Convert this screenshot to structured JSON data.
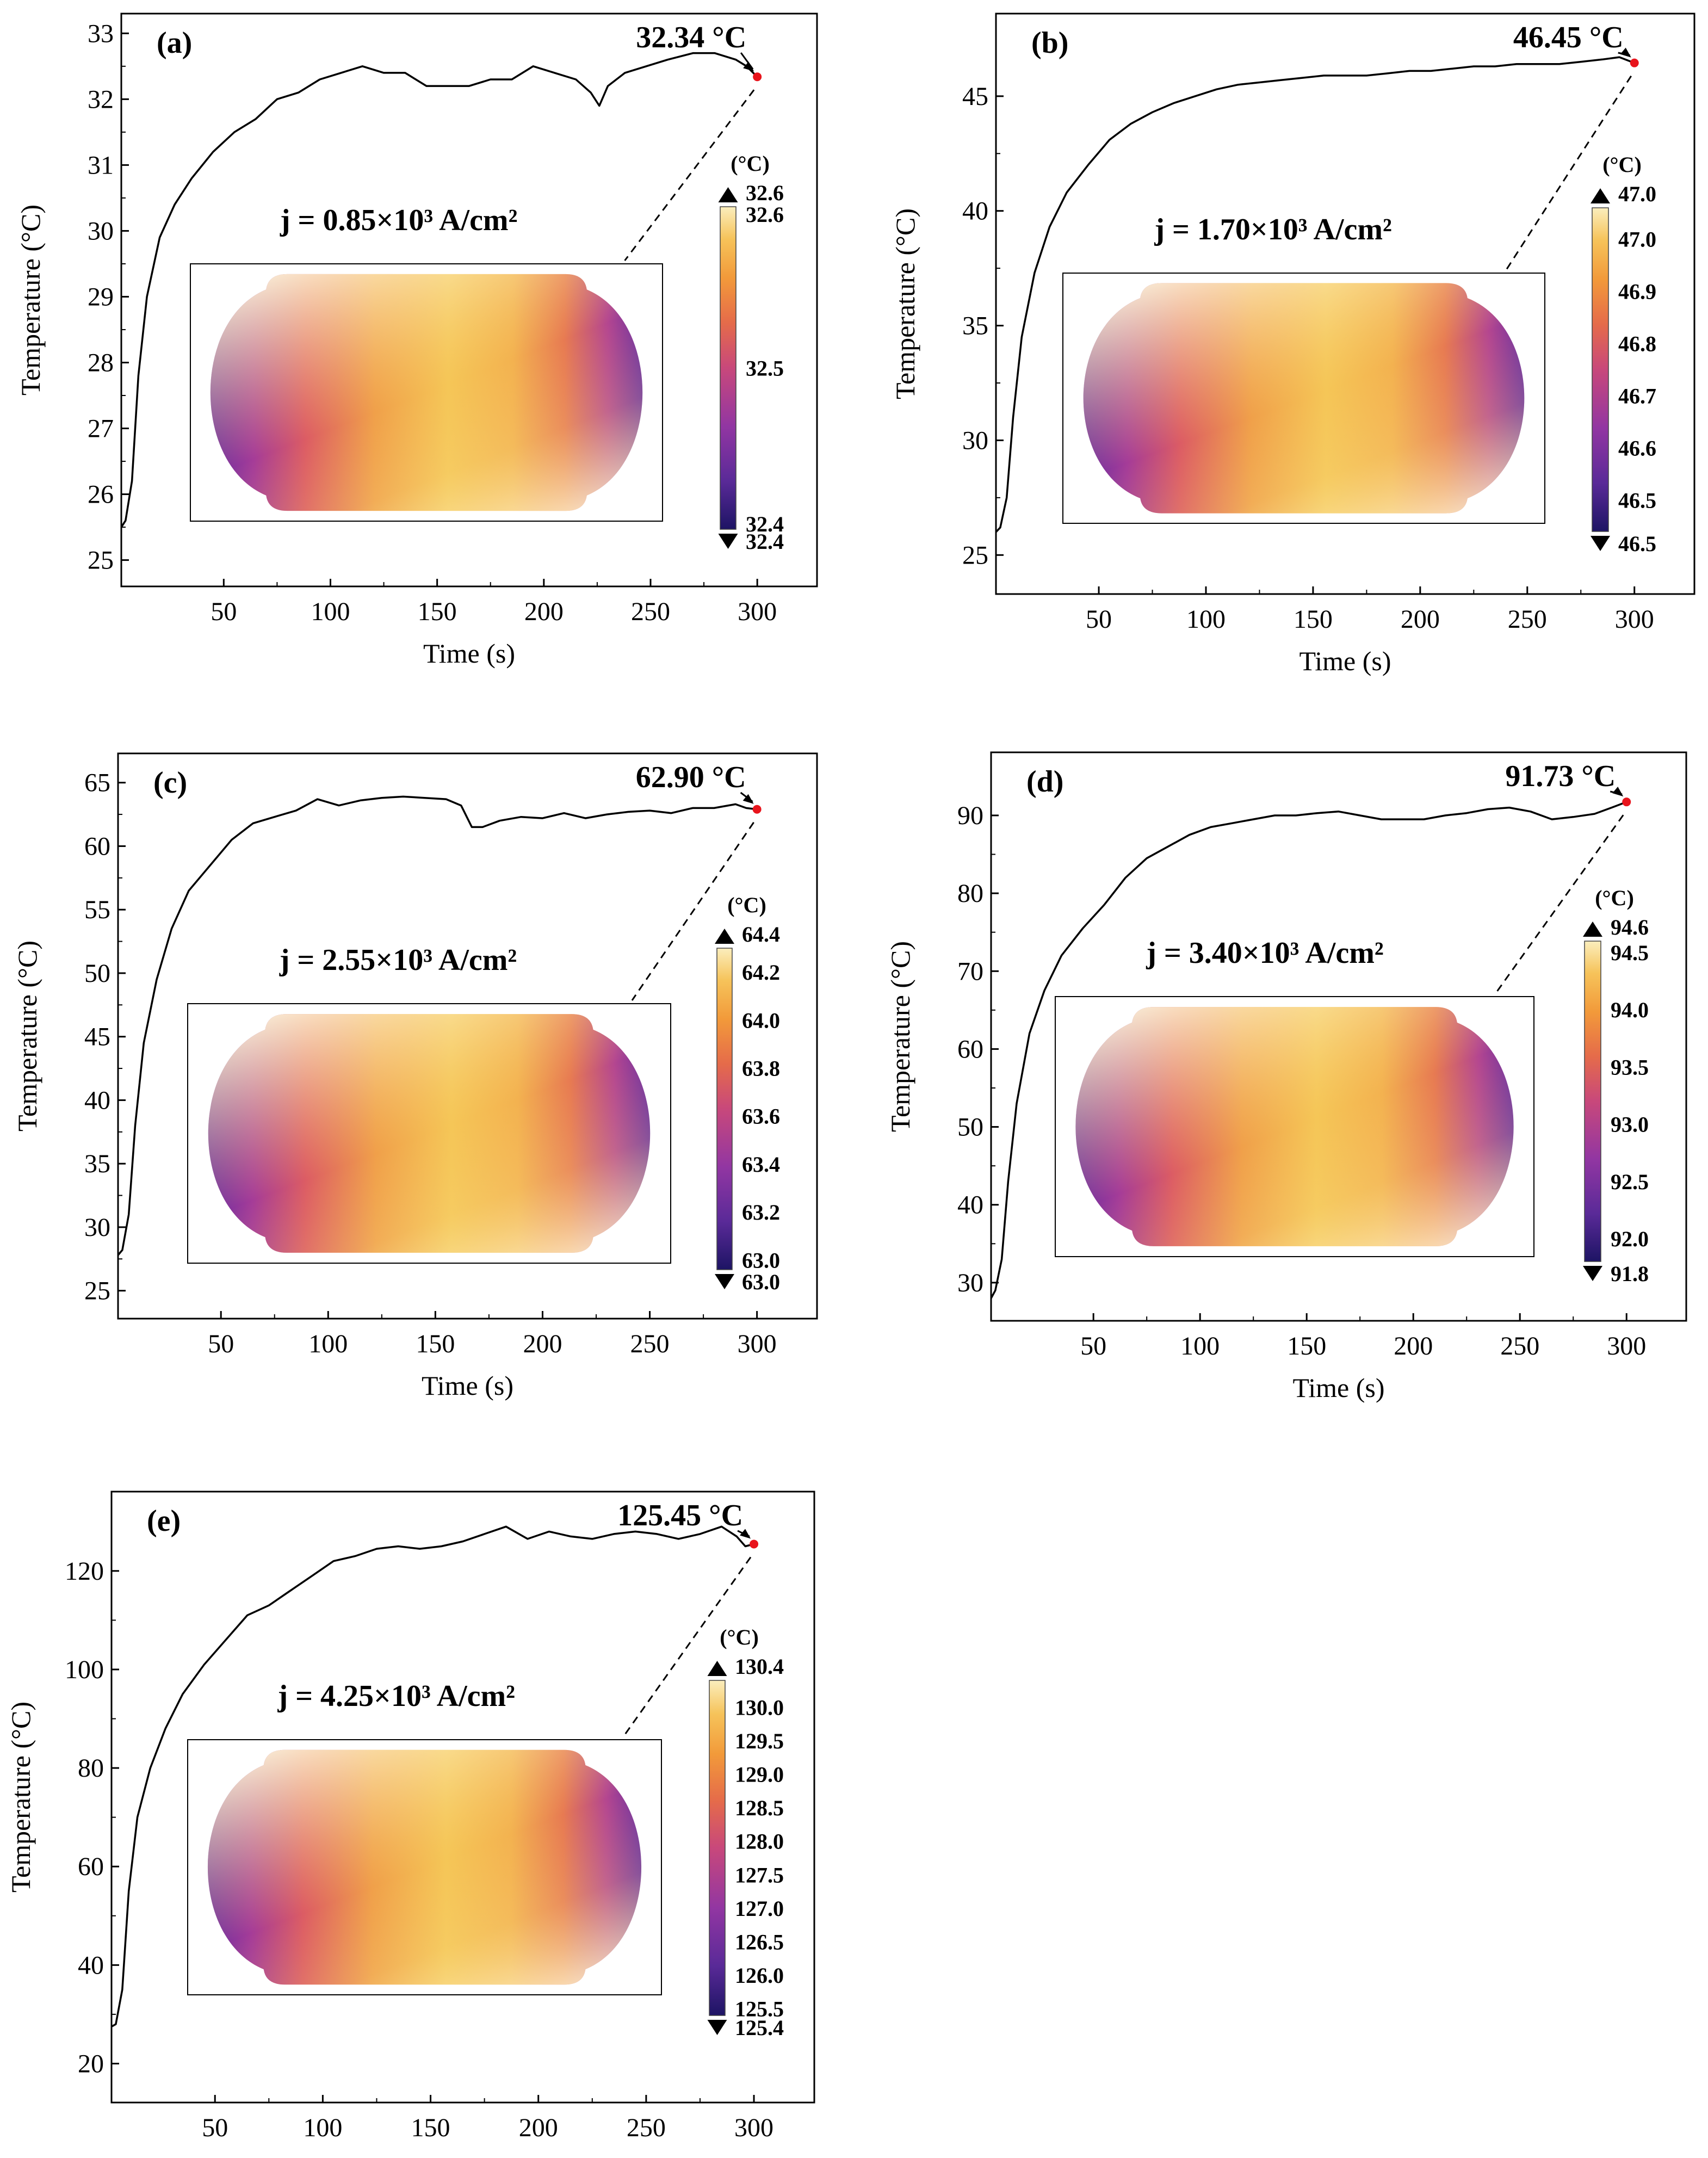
{
  "chart_data": [
    {
      "type": "line",
      "panel_label": "(a)",
      "xlabel": "Time (s)",
      "ylabel": "Temperature (°C)",
      "xlim": [
        2,
        328
      ],
      "ylim": [
        24.6,
        33.3
      ],
      "xticks": [
        50,
        100,
        150,
        200,
        250,
        300
      ],
      "yticks": [
        25,
        26,
        27,
        28,
        29,
        30,
        31,
        32,
        33
      ],
      "x": [
        2,
        4,
        7,
        10,
        14,
        20,
        27,
        35,
        45,
        55,
        65,
        75,
        85,
        95,
        105,
        115,
        125,
        135,
        145,
        155,
        165,
        175,
        185,
        195,
        205,
        215,
        222,
        226,
        230,
        238,
        248,
        258,
        270,
        280,
        290,
        295,
        300
      ],
      "y": [
        25.5,
        25.6,
        26.2,
        27.8,
        29.0,
        29.9,
        30.4,
        30.8,
        31.2,
        31.5,
        31.7,
        32.0,
        32.1,
        32.3,
        32.4,
        32.5,
        32.4,
        32.4,
        32.2,
        32.2,
        32.2,
        32.3,
        32.3,
        32.5,
        32.4,
        32.3,
        32.1,
        31.9,
        32.2,
        32.4,
        32.5,
        32.6,
        32.7,
        32.7,
        32.6,
        32.5,
        32.34
      ],
      "endpoint_label": "32.34 °C",
      "endpoint": [
        300,
        32.34
      ],
      "current_density": "j =  0.85×10³ A/cm²",
      "colorbar": {
        "unit": "(°C)",
        "max_label": "32.6",
        "min_label": "32.4",
        "tick_labels": [
          "32.6",
          "32.5",
          "32.4"
        ],
        "tick_values": [
          32.6,
          32.5,
          32.4
        ],
        "range": [
          32.4,
          32.6
        ]
      }
    },
    {
      "type": "line",
      "panel_label": "(b)",
      "xlabel": "Time (s)",
      "ylabel": "Temperature (°C)",
      "xlim": [
        2,
        328
      ],
      "ylim": [
        23.3,
        48.6
      ],
      "xticks": [
        50,
        100,
        150,
        200,
        250,
        300
      ],
      "yticks": [
        25,
        30,
        35,
        40,
        45
      ],
      "x": [
        2,
        4,
        7,
        10,
        14,
        20,
        27,
        35,
        45,
        55,
        65,
        75,
        85,
        95,
        105,
        115,
        125,
        135,
        145,
        155,
        165,
        175,
        185,
        195,
        205,
        215,
        225,
        235,
        245,
        255,
        265,
        275,
        285,
        293,
        300
      ],
      "y": [
        26.0,
        26.2,
        27.5,
        31.0,
        34.5,
        37.3,
        39.3,
        40.8,
        42.0,
        43.1,
        43.8,
        44.3,
        44.7,
        45.0,
        45.3,
        45.5,
        45.6,
        45.7,
        45.8,
        45.9,
        45.9,
        45.9,
        46.0,
        46.1,
        46.1,
        46.2,
        46.3,
        46.3,
        46.4,
        46.4,
        46.4,
        46.5,
        46.6,
        46.7,
        46.45
      ],
      "endpoint_label": "46.45 °C",
      "endpoint": [
        300,
        46.45
      ],
      "current_density": "j =  1.70×10³ A/cm²",
      "colorbar": {
        "unit": "(°C)",
        "max_label": "47.0",
        "min_label": "46.5",
        "tick_labels": [
          "47.0",
          "46.9",
          "46.8",
          "46.7",
          "46.6",
          "46.5"
        ],
        "tick_values": [
          47.0,
          46.9,
          46.8,
          46.7,
          46.6,
          46.5
        ],
        "range": [
          46.44,
          47.06
        ]
      }
    },
    {
      "type": "line",
      "panel_label": "(c)",
      "xlabel": "Time (s)",
      "ylabel": "Temperature (°C)",
      "xlim": [
        2,
        328
      ],
      "ylim": [
        22.8,
        67.3
      ],
      "xticks": [
        50,
        100,
        150,
        200,
        250,
        300
      ],
      "yticks": [
        25,
        30,
        35,
        40,
        45,
        50,
        55,
        60,
        65
      ],
      "x": [
        2,
        4,
        7,
        10,
        14,
        20,
        27,
        35,
        45,
        55,
        65,
        75,
        85,
        95,
        105,
        115,
        125,
        135,
        145,
        155,
        162,
        167,
        172,
        180,
        190,
        200,
        210,
        220,
        230,
        240,
        250,
        260,
        270,
        280,
        290,
        295,
        300
      ],
      "y": [
        27.8,
        28.2,
        31.0,
        38.0,
        44.5,
        49.5,
        53.5,
        56.5,
        58.5,
        60.5,
        61.8,
        62.3,
        62.8,
        63.7,
        63.2,
        63.6,
        63.8,
        63.9,
        63.8,
        63.7,
        63.2,
        61.5,
        61.5,
        62.0,
        62.3,
        62.2,
        62.6,
        62.2,
        62.5,
        62.7,
        62.8,
        62.6,
        63.0,
        63.0,
        63.3,
        63.0,
        62.9
      ],
      "endpoint_label": "62.90 °C",
      "endpoint": [
        300,
        62.9
      ],
      "current_density": "j =  2.55×10³ A/cm²",
      "colorbar": {
        "unit": "(°C)",
        "max_label": "64.4",
        "min_label": "63.0",
        "tick_labels": [
          "64.2",
          "64.0",
          "63.8",
          "63.6",
          "63.4",
          "63.2",
          "63.0"
        ],
        "tick_values": [
          64.2,
          64.0,
          63.8,
          63.6,
          63.4,
          63.2,
          63.0
        ],
        "range": [
          62.96,
          64.3
        ]
      }
    },
    {
      "type": "line",
      "panel_label": "(d)",
      "xlabel": "Time (s)",
      "ylabel": "Temperature (°C)",
      "xlim": [
        2,
        328
      ],
      "ylim": [
        25.1,
        98.1
      ],
      "xticks": [
        50,
        100,
        150,
        200,
        250,
        300
      ],
      "yticks": [
        30,
        40,
        50,
        60,
        70,
        80,
        90
      ],
      "x": [
        2,
        4,
        7,
        10,
        14,
        20,
        27,
        35,
        45,
        55,
        65,
        75,
        85,
        95,
        105,
        115,
        125,
        135,
        145,
        155,
        165,
        175,
        185,
        195,
        205,
        215,
        225,
        235,
        245,
        255,
        265,
        275,
        285,
        293,
        300
      ],
      "y": [
        28.0,
        29.0,
        33.0,
        43.0,
        53.0,
        62.0,
        67.5,
        72.0,
        75.5,
        78.5,
        82.0,
        84.5,
        86.0,
        87.5,
        88.5,
        89.0,
        89.5,
        90.0,
        90.0,
        90.3,
        90.5,
        90.0,
        89.5,
        89.5,
        89.5,
        90.0,
        90.3,
        90.8,
        91.0,
        90.5,
        89.5,
        89.8,
        90.2,
        91.0,
        91.73
      ],
      "endpoint_label": "91.73 °C",
      "endpoint": [
        300,
        91.73
      ],
      "current_density": "j =  3.40×10³ A/cm²",
      "colorbar": {
        "unit": "(°C)",
        "max_label": "94.6",
        "min_label": "91.8",
        "tick_labels": [
          "94.5",
          "94.0",
          "93.5",
          "93.0",
          "92.5",
          "92.0"
        ],
        "tick_values": [
          94.5,
          94.0,
          93.5,
          93.0,
          92.5,
          92.0
        ],
        "range": [
          91.8,
          94.6
        ]
      }
    },
    {
      "type": "line",
      "panel_label": "(e)",
      "xlabel": "Time (s)",
      "ylabel": "Temperature (°C)",
      "xlim": [
        2,
        328
      ],
      "ylim": [
        12.1,
        136.1
      ],
      "xticks": [
        50,
        100,
        150,
        200,
        250,
        300
      ],
      "yticks": [
        20,
        40,
        60,
        80,
        100,
        120
      ],
      "x": [
        2,
        4,
        7,
        10,
        14,
        20,
        27,
        35,
        45,
        55,
        65,
        75,
        85,
        95,
        105,
        115,
        125,
        135,
        145,
        155,
        165,
        175,
        185,
        195,
        205,
        215,
        225,
        235,
        245,
        255,
        265,
        275,
        285,
        292,
        296,
        300
      ],
      "y": [
        27.5,
        28.0,
        35.0,
        55.0,
        70.0,
        80.0,
        88.0,
        95.0,
        101.0,
        106.0,
        111.0,
        113.0,
        116.0,
        119.0,
        122.0,
        123.0,
        124.5,
        125.0,
        124.5,
        125.0,
        126.0,
        127.5,
        129.0,
        126.5,
        128.0,
        127.0,
        126.5,
        127.5,
        128.0,
        127.5,
        126.5,
        127.5,
        129.0,
        127.0,
        125.0,
        125.45
      ],
      "endpoint_label": "125.45 °C",
      "endpoint": [
        300,
        125.45
      ],
      "current_density": "j =  4.25×10³ A/cm²",
      "colorbar": {
        "unit": "(°C)",
        "max_label": "130.4",
        "min_label": "125.4",
        "tick_labels": [
          "130.0",
          "129.5",
          "129.0",
          "128.5",
          "128.0",
          "127.5",
          "127.0",
          "126.5",
          "126.0",
          "125.5"
        ],
        "tick_values": [
          130.0,
          129.5,
          129.0,
          128.5,
          128.0,
          127.5,
          127.0,
          126.5,
          126.0,
          125.5
        ],
        "range": [
          125.4,
          130.4
        ]
      }
    }
  ],
  "colors": {
    "line": "#000000",
    "endpoint_marker": "#e8141c",
    "colormap": [
      "#1d1464",
      "#5a2a98",
      "#9236a2",
      "#c8487b",
      "#e56b4a",
      "#f29a3a",
      "#f6c35a",
      "#fbeebd"
    ]
  }
}
